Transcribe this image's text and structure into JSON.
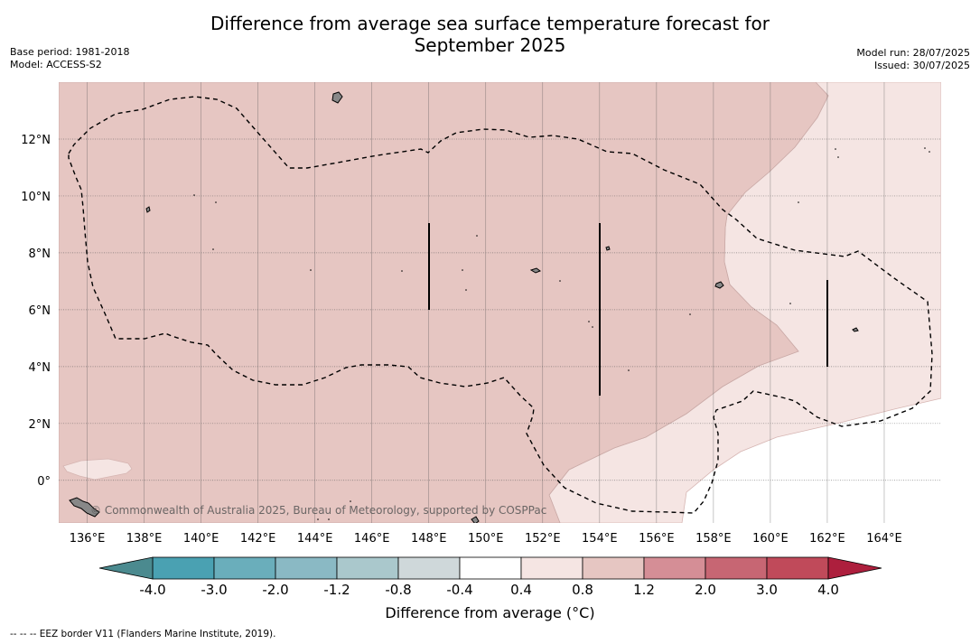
{
  "title": {
    "line1": "Difference from average sea surface temperature forecast for",
    "line2": "September 2025"
  },
  "meta_left": {
    "base_period": "Base period: 1981-2018",
    "model": "Model: ACCESS-S2"
  },
  "meta_right": {
    "model_run": "Model run: 28/07/2025",
    "issued": "Issued: 30/07/2025"
  },
  "map": {
    "lat_labels": [
      "12°N",
      "10°N",
      "8°N",
      "6°N",
      "4°N",
      "2°N",
      "0°"
    ],
    "lon_labels": [
      "136°E",
      "138°E",
      "140°E",
      "142°E",
      "144°E",
      "146°E",
      "148°E",
      "150°E",
      "152°E",
      "154°E",
      "156°E",
      "158°E",
      "160°E",
      "162°E",
      "164°E"
    ],
    "lat_values": [
      12,
      10,
      8,
      6,
      4,
      2,
      0
    ],
    "lon_values": [
      136,
      138,
      140,
      142,
      144,
      146,
      148,
      150,
      152,
      154,
      156,
      158,
      160,
      162,
      164
    ],
    "extent": {
      "lon_min": 135,
      "lon_max": 166,
      "lat_min": -1.5,
      "lat_max": 14
    },
    "watermark": "© Commonwealth of Australia 2025, Bureau of Meteorology, supported by COSPPac",
    "colors": {
      "warm_1_2": "#e6c6c2",
      "warm_0_8": "#f5e5e3",
      "neutral": "#ffffff",
      "land": "#888888",
      "grid": "#555555"
    }
  },
  "colorbar": {
    "tick_labels": [
      "-4.0",
      "-3.0",
      "-2.0",
      "-1.2",
      "-0.8",
      "-0.4",
      "0.4",
      "0.8",
      "1.2",
      "2.0",
      "3.0",
      "4.0"
    ],
    "colors": [
      "#4aa1b2",
      "#6aaebb",
      "#8ab9c4",
      "#aac8cc",
      "#cfd8da",
      "#ffffff",
      "#f5e5e3",
      "#e6c6c2",
      "#d58e96",
      "#c76673",
      "#c04a5a"
    ],
    "low_extend_color": "#4b8a8f",
    "high_extend_color": "#ad1f3d",
    "label": "Difference from average (°C)"
  },
  "footnote": "-- -- -- EEZ border V11 (Flanders Marine Institute, 2019)."
}
